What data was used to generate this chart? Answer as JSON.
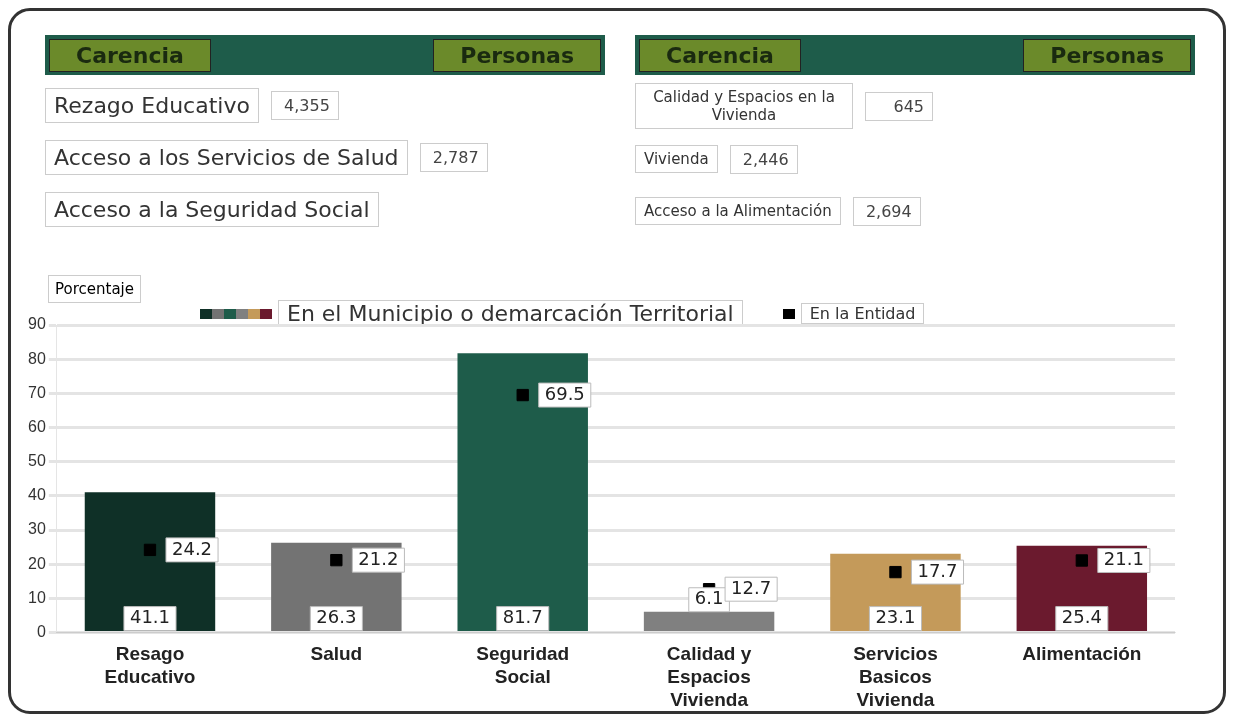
{
  "chart_data": [
    {
      "type": "other",
      "xlabel": "Carencia",
      "ylabel": "Personas",
      "categories": [
        "Rezago Educativo",
        "Acceso a los Servicios de Salud",
        "Acceso a la Seguridad Social",
        "Calidad y Espacios en la Vivienda",
        "Vivienda",
        "Acceso a la Alimentación"
      ],
      "value_labels": [
        "4,355",
        "2,787",
        null,
        "645",
        "2,446",
        "2,694"
      ]
    },
    {
      "type": "bar",
      "ylabel": "Porcentaje",
      "categories": [
        "Resago Educativo",
        "Salud",
        "Seguridad Social",
        "Calidad y Espacios Vivienda",
        "Servicios Basicos Vivienda",
        "Alimentación"
      ],
      "series": [
        {
          "name": "En el Municipio o demarcación Territorial",
          "colors": [
            "#0f3027",
            "#737373",
            "#1e5c4a",
            "#808080",
            "#c49a5a",
            "#6b1a2e"
          ],
          "values": [
            41.1,
            26.3,
            81.7,
            6.1,
            23.1,
            25.4
          ]
        },
        {
          "name": "En la Entidad",
          "type": "scatter",
          "color": "#000000",
          "values": [
            24.2,
            21.2,
            69.5,
            12.7,
            17.7,
            21.1
          ]
        }
      ],
      "ylim": [
        0,
        90
      ],
      "yticks": [
        0,
        10,
        20,
        30,
        40,
        50,
        60,
        70,
        80,
        90
      ],
      "grid": "y",
      "legend": "top",
      "marker": "square",
      "data_labels": true
    }
  ]
}
